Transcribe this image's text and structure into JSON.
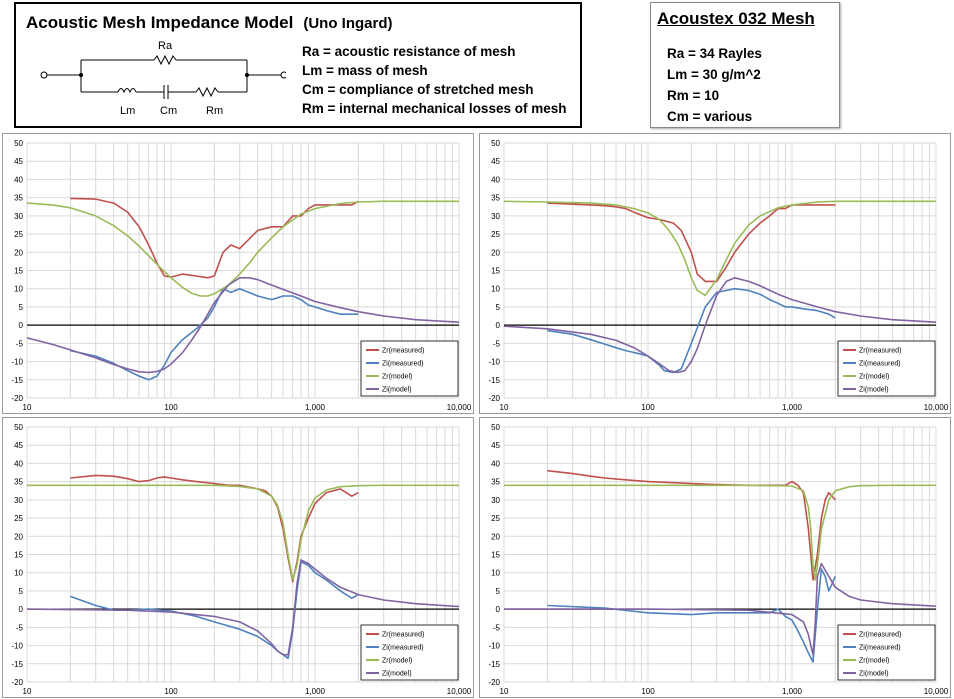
{
  "header": {
    "title": "Acoustic Mesh Impedance Model",
    "subtitle": "(Uno Ingard)",
    "circuit_labels": {
      "ra": "Ra",
      "lm": "Lm",
      "cm": "Cm",
      "rm": "Rm"
    },
    "definitions": [
      "Ra = acoustic resistance of mesh",
      "Lm = mass of mesh",
      "Cm = compliance of stretched mesh",
      "Rm = internal mechanical losses of mesh"
    ]
  },
  "spec": {
    "title": "Acoustex 032 Mesh",
    "lines": [
      "Ra = 34 Rayles",
      "Lm = 30 g/m^2",
      "Rm = 10",
      "Cm = various"
    ]
  },
  "colors": {
    "measured_r": "#c0504d",
    "measured_i": "#4f81bd",
    "model_r": "#9bbb59",
    "model_i": "#8064a2",
    "grid": "#d9d9d9"
  },
  "chart_data": [
    {
      "type": "line",
      "xscale": "log",
      "xlim": [
        10,
        10000
      ],
      "ylim": [
        -20,
        50
      ],
      "xticks": [
        "10",
        "100",
        "1,000",
        "10,000"
      ],
      "yticks": [
        "50",
        "45",
        "40",
        "35",
        "30",
        "25",
        "20",
        "15",
        "10",
        "5",
        "0",
        "-5",
        "-10",
        "-15",
        "-20"
      ],
      "legend_position": "bottom-right",
      "series": [
        {
          "name": "Zr(measured)",
          "x": [
            20,
            30,
            40,
            50,
            60,
            70,
            80,
            90,
            100,
            120,
            150,
            180,
            200,
            230,
            260,
            300,
            400,
            500,
            600,
            700,
            800,
            900,
            1000,
            1200,
            1500,
            1800,
            2000
          ],
          "y": [
            34.8,
            34.6,
            33.5,
            31,
            27,
            22,
            17,
            13.5,
            13.2,
            14,
            13.5,
            13,
            13.5,
            20,
            22,
            21,
            26,
            27,
            27,
            30,
            30,
            32,
            33,
            33,
            33,
            33,
            34
          ]
        },
        {
          "name": "Zi(measured)",
          "x": [
            20,
            30,
            40,
            50,
            60,
            70,
            80,
            90,
            100,
            120,
            150,
            180,
            200,
            230,
            260,
            300,
            400,
            500,
            600,
            700,
            800,
            900,
            1000,
            1200,
            1500,
            1800,
            2000
          ],
          "y": [
            -7,
            -8.5,
            -10.5,
            -12.5,
            -14,
            -15,
            -14,
            -11,
            -7.5,
            -4,
            -1,
            2,
            5,
            10,
            9,
            10,
            8,
            7,
            8,
            8,
            7,
            5.5,
            5,
            4,
            3,
            3,
            3
          ]
        },
        {
          "name": "Zr(model)",
          "x": [
            10,
            15,
            20,
            30,
            40,
            50,
            60,
            70,
            80,
            90,
            100,
            120,
            140,
            160,
            180,
            200,
            250,
            300,
            350,
            400,
            500,
            600,
            800,
            1000,
            1500,
            2000,
            3000,
            5000,
            10000
          ],
          "y": [
            33.5,
            33,
            32.2,
            30,
            27.3,
            24.5,
            21.7,
            19,
            16.7,
            14.7,
            13,
            10.4,
            8.7,
            8,
            8,
            8.6,
            11,
            14,
            17,
            20,
            24,
            27,
            30.5,
            32,
            33.4,
            33.8,
            34,
            34,
            34
          ]
        },
        {
          "name": "Zi(model)",
          "x": [
            10,
            15,
            20,
            30,
            40,
            50,
            60,
            70,
            80,
            90,
            100,
            120,
            140,
            160,
            180,
            200,
            250,
            300,
            350,
            400,
            500,
            600,
            800,
            1000,
            1500,
            2000,
            3000,
            5000,
            10000
          ],
          "y": [
            -3.5,
            -5.3,
            -6.8,
            -9,
            -10.8,
            -12,
            -12.8,
            -13,
            -12.7,
            -12,
            -10.7,
            -7.6,
            -4,
            -0.5,
            3,
            6.2,
            11,
            13,
            13,
            12.5,
            11,
            9.8,
            8,
            6.5,
            4.8,
            3.7,
            2.5,
            1.5,
            0.8
          ]
        }
      ]
    },
    {
      "type": "line",
      "xscale": "log",
      "xlim": [
        10,
        10000
      ],
      "ylim": [
        -20,
        50
      ],
      "xticks": [
        "10",
        "100",
        "1,000",
        "10,000"
      ],
      "yticks": [
        "50",
        "45",
        "40",
        "35",
        "30",
        "25",
        "20",
        "15",
        "10",
        "5",
        "0",
        "-5",
        "-10",
        "-15",
        "-20"
      ],
      "legend_position": "bottom-right",
      "series": [
        {
          "name": "Zr(measured)",
          "x": [
            20,
            30,
            40,
            50,
            60,
            70,
            80,
            100,
            120,
            150,
            170,
            200,
            220,
            250,
            300,
            350,
            400,
            500,
            600,
            700,
            800,
            900,
            1000,
            1200,
            1500,
            1800,
            2000
          ],
          "y": [
            33.5,
            33.2,
            33,
            32.8,
            32.5,
            32,
            31,
            29.5,
            29,
            28,
            26,
            20,
            14,
            12,
            12,
            16,
            20,
            25,
            28,
            30,
            32,
            32,
            33,
            33,
            33,
            33,
            33
          ]
        },
        {
          "name": "Zi(measured)",
          "x": [
            20,
            30,
            40,
            50,
            60,
            70,
            80,
            90,
            100,
            120,
            130,
            150,
            170,
            200,
            250,
            300,
            400,
            500,
            600,
            700,
            800,
            900,
            1000,
            1200,
            1500,
            1800,
            2000
          ],
          "y": [
            -1.5,
            -2.5,
            -4,
            -5.2,
            -6.2,
            -7,
            -7.5,
            -8,
            -8.5,
            -11,
            -12.5,
            -13,
            -12,
            -5,
            5,
            9,
            10,
            9.5,
            8.5,
            7,
            6,
            5,
            5,
            4.5,
            4,
            3,
            2
          ]
        },
        {
          "name": "Zr(model)",
          "x": [
            10,
            20,
            40,
            60,
            80,
            100,
            120,
            140,
            160,
            180,
            200,
            220,
            250,
            300,
            350,
            400,
            500,
            600,
            800,
            1000,
            1500,
            2000,
            3000,
            5000,
            10000
          ],
          "y": [
            34,
            33.8,
            33.5,
            33,
            32,
            30.8,
            29,
            26,
            22.5,
            18,
            13,
            9.5,
            8.2,
            12.5,
            18,
            22.5,
            27.5,
            30,
            32.2,
            33,
            33.8,
            34,
            34,
            34,
            34
          ]
        },
        {
          "name": "Zi(model)",
          "x": [
            10,
            20,
            40,
            60,
            80,
            100,
            120,
            140,
            160,
            180,
            200,
            220,
            250,
            300,
            350,
            400,
            500,
            600,
            800,
            1000,
            1500,
            2000,
            3000,
            5000,
            10000
          ],
          "y": [
            -0.3,
            -1,
            -2.5,
            -4.2,
            -6.2,
            -8.5,
            -10.6,
            -12.5,
            -13,
            -12.5,
            -10,
            -6.4,
            0,
            8.2,
            12,
            13,
            12,
            10.8,
            8.5,
            7,
            5,
            3.7,
            2.5,
            1.5,
            0.8
          ]
        }
      ]
    },
    {
      "type": "line",
      "xscale": "log",
      "xlim": [
        10,
        10000
      ],
      "ylim": [
        -20,
        50
      ],
      "xticks": [
        "10",
        "100",
        "1,000",
        "10,000"
      ],
      "yticks": [
        "50",
        "45",
        "40",
        "35",
        "30",
        "25",
        "20",
        "15",
        "10",
        "5",
        "0",
        "-5",
        "-10",
        "-15",
        "-20"
      ],
      "legend_position": "bottom-right",
      "series": [
        {
          "name": "Zr(measured)",
          "x": [
            20,
            30,
            40,
            50,
            60,
            70,
            80,
            90,
            100,
            120,
            150,
            200,
            250,
            300,
            350,
            400,
            450,
            500,
            550,
            600,
            650,
            700,
            750,
            800,
            900,
            1000,
            1200,
            1500,
            1800,
            2000
          ],
          "y": [
            36,
            36.7,
            36.5,
            35.8,
            35,
            35.3,
            36,
            36.3,
            36,
            35.5,
            35,
            34.5,
            34,
            34,
            33.5,
            33,
            32.5,
            31,
            28,
            22,
            14,
            7.5,
            13,
            20,
            25,
            29,
            32,
            33,
            31,
            32
          ]
        },
        {
          "name": "Zi(measured)",
          "x": [
            20,
            30,
            40,
            50,
            70,
            100,
            150,
            200,
            300,
            400,
            500,
            550,
            600,
            650,
            700,
            750,
            800,
            900,
            1000,
            1200,
            1500,
            1800,
            2000
          ],
          "y": [
            3.5,
            1,
            -0.3,
            -0.3,
            0,
            -0.5,
            -2,
            -3.5,
            -5.5,
            -7.5,
            -10,
            -11.5,
            -12.5,
            -13.5,
            -6,
            5,
            13,
            12,
            10,
            8,
            5,
            3,
            4
          ]
        },
        {
          "name": "Zr(model)",
          "x": [
            10,
            50,
            100,
            200,
            300,
            400,
            500,
            550,
            600,
            650,
            700,
            750,
            800,
            900,
            1000,
            1200,
            1500,
            2000,
            3000,
            5000,
            10000
          ],
          "y": [
            34,
            34,
            34,
            34,
            33.7,
            33,
            31,
            28.5,
            23.5,
            15,
            8,
            12,
            19,
            27,
            30.5,
            32.7,
            33.6,
            33.9,
            34,
            34,
            34
          ]
        },
        {
          "name": "Zi(model)",
          "x": [
            10,
            50,
            100,
            200,
            300,
            400,
            500,
            550,
            600,
            650,
            700,
            750,
            800,
            900,
            1000,
            1200,
            1500,
            2000,
            3000,
            5000,
            10000
          ],
          "y": [
            0,
            -0.3,
            -0.8,
            -2,
            -3.5,
            -6,
            -9.5,
            -11.5,
            -12.5,
            -12.5,
            -5,
            7,
            13.5,
            12.5,
            11,
            8.5,
            6,
            4,
            2.5,
            1.5,
            0.7
          ]
        }
      ]
    },
    {
      "type": "line",
      "xscale": "log",
      "xlim": [
        10,
        10000
      ],
      "ylim": [
        -20,
        50
      ],
      "xticks": [
        "10",
        "100",
        "1,000",
        "10,000"
      ],
      "yticks": [
        "50",
        "45",
        "40",
        "35",
        "30",
        "25",
        "20",
        "15",
        "10",
        "5",
        "0",
        "-5",
        "-10",
        "-15",
        "-20"
      ],
      "legend_position": "bottom-right",
      "series": [
        {
          "name": "Zr(measured)",
          "x": [
            20,
            30,
            40,
            50,
            70,
            100,
            150,
            200,
            300,
            500,
            700,
            900,
            1000,
            1100,
            1200,
            1300,
            1400,
            1500,
            1600,
            1700,
            1800,
            2000
          ],
          "y": [
            38,
            37.2,
            36.5,
            36,
            35.5,
            35,
            34.7,
            34.5,
            34.2,
            34,
            34,
            34,
            35,
            34,
            32,
            22,
            8,
            15,
            25,
            30,
            32,
            30
          ]
        },
        {
          "name": "Zi(measured)",
          "x": [
            20,
            50,
            100,
            200,
            300,
            500,
            700,
            800,
            900,
            1000,
            1100,
            1200,
            1300,
            1400,
            1500,
            1600,
            1700,
            1800,
            2000
          ],
          "y": [
            1,
            0.3,
            -1,
            -1.5,
            -1,
            -1,
            -1,
            0,
            -2,
            -3,
            -6,
            -9,
            -12,
            -14.5,
            0,
            11,
            9,
            5,
            9
          ]
        },
        {
          "name": "Zr(model)",
          "x": [
            10,
            100,
            500,
            1000,
            1200,
            1300,
            1350,
            1400,
            1450,
            1500,
            1600,
            1800,
            2000,
            2500,
            3000,
            5000,
            10000
          ],
          "y": [
            34,
            34,
            34,
            33.8,
            32.5,
            28,
            22,
            12,
            8,
            12,
            22,
            30,
            32.5,
            33.6,
            33.9,
            34,
            34
          ]
        },
        {
          "name": "Zi(model)",
          "x": [
            10,
            100,
            500,
            1000,
            1200,
            1300,
            1350,
            1400,
            1450,
            1500,
            1600,
            1800,
            2000,
            2500,
            3000,
            5000,
            10000
          ],
          "y": [
            0,
            0,
            -0.3,
            -1.5,
            -3.5,
            -7,
            -10,
            -12.5,
            -4,
            9,
            12.5,
            9,
            6,
            3.5,
            2.5,
            1.5,
            0.8
          ]
        }
      ]
    }
  ]
}
